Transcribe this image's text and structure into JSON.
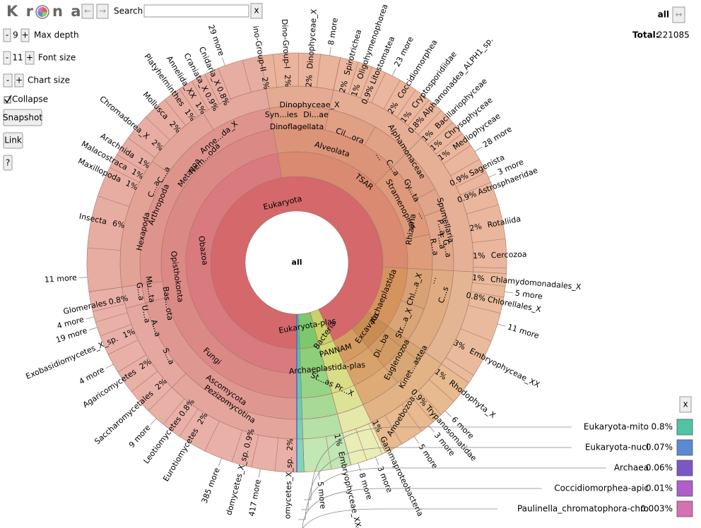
{
  "toolbar": {
    "logo_left": "K r",
    "logo_right": "n a",
    "back": "←",
    "forward": "→",
    "search_label": "Search:",
    "search_clear": "x",
    "max_depth": {
      "minus": "-",
      "value": "9",
      "plus": "+",
      "label": "Max depth"
    },
    "font_size": {
      "minus": "-",
      "value": "11",
      "plus": "+",
      "label": "Font size"
    },
    "chart_size": {
      "minus": "-",
      "plus": "+",
      "label": "Chart size"
    },
    "collapse": "Collapse",
    "snapshot": "Snapshot",
    "link": "Link",
    "help": "?"
  },
  "header": {
    "node": "all",
    "expand": "↔",
    "total_label": "Total:",
    "total": 221085
  },
  "chart": {
    "center": "all",
    "labels": [
      "Eukaryota",
      "Obazoa",
      "Opisthokonta",
      "Fungi",
      "Ascomycota",
      "Pezizomycotina",
      "Metazoa",
      "Arthropoda",
      "Hexapoda",
      "Nem...oda",
      "Anne...da_X",
      "C...a",
      "C...a",
      "TSAR",
      "Alveolata",
      "Dinoflagellata",
      "Syn...ies",
      "Di...ae",
      "Dinophyceae_X",
      "Cil...ora",
      "C...a",
      "Alphamonaceae",
      "Stramenopiles",
      "Gy...ta",
      "Spumellaria",
      "P...a",
      "F...a",
      "G...a",
      "R...a",
      "Rhizaria",
      "Chl...a_X",
      "Str...a_X",
      "Di...ba",
      "Euglenozoa",
      "Kinet...astea",
      "Amoebozoa",
      "Archaeplastida",
      "Excavata",
      "Eukaryota-plas",
      "Bacteria",
      "PANNAM",
      "Archaeplastida-plas",
      "St...as Pr...X",
      "Mu...ta",
      "G...a",
      "Bas...ota",
      "U...a",
      "A...a",
      "S...a",
      "...",
      "...",
      "...",
      "C...s"
    ],
    "outer": [
      {
        "name": "Insecta",
        "share": "6%"
      },
      {
        "name": "Maxillopoda",
        "share": "1%"
      },
      {
        "name": "Malacostraca",
        "share": "1%"
      },
      {
        "name": "Arachnida",
        "share": "1%"
      },
      {
        "name": "Chromadorea_X",
        "share": "2%"
      },
      {
        "name": "Mollusca",
        "share": "2%"
      },
      {
        "name": "Platyhelminthes",
        "share": "1%"
      },
      {
        "name": "Annelida_XX",
        "share": "1%"
      },
      {
        "name": "Craniata_X",
        "share": "0.9%"
      },
      {
        "name": "Cnidaria_X",
        "share": "0.8%"
      },
      {
        "name": "29 more"
      },
      {
        "name": "ino-Group-II",
        "share": "2%"
      },
      {
        "name": "Dino-Group-I",
        "share": "2%"
      },
      {
        "name": "Dinophyceae_X",
        "share": "2%"
      },
      {
        "name": "8 more"
      },
      {
        "name": "Spirotrichea",
        "share": "2%"
      },
      {
        "name": "Oligohymenophorea",
        "share": "1%"
      },
      {
        "name": "Litostomatea",
        "share": "0.9%"
      },
      {
        "name": "23 more"
      },
      {
        "name": "Coccidiomorphea",
        "share": "2%"
      },
      {
        "name": "Cryptosporidiidae",
        "share": "1%"
      },
      {
        "name": "Alphamonadea_ALPH1_sp.",
        "share": "0.8%"
      },
      {
        "name": "Bacillariophyceae",
        "share": "1%"
      },
      {
        "name": "Chrysophyceae",
        "share": "1%"
      },
      {
        "name": "Mediophyceae",
        "share": "1%"
      },
      {
        "name": "28 more"
      },
      {
        "name": "Sagenista",
        "share": "0.9%"
      },
      {
        "name": "3 more"
      },
      {
        "name": "Astrosphaeridae",
        "share": "0.9%"
      },
      {
        "name": "Rotaliida",
        "share": "2%"
      },
      {
        "name": "Cercozoa",
        "share": "1%"
      },
      {
        "name": "Chlamydomonadales_X",
        "share": "1%"
      },
      {
        "name": "5 more"
      },
      {
        "name": "Chlorellales_X",
        "share": "0.8%"
      },
      {
        "name": "11 more"
      },
      {
        "name": "Embryophyceae_XX",
        "share": "3%"
      },
      {
        "name": "Rhodophyta_X",
        "share": "1%"
      },
      {
        "name": "6 more"
      },
      {
        "name": "Trypanosomatidae",
        "share": "0.9%"
      },
      {
        "name": "3 more"
      },
      {
        "name": "5 more"
      },
      {
        "name": "Gammaproteobacteria",
        "share": "1%"
      },
      {
        "name": "3 more"
      },
      {
        "name": "8 more"
      },
      {
        "name": "Embryophyceae_XX-pla",
        "share": "1%"
      },
      {
        "name": "5 more"
      },
      {
        "name": "omycetes_X_sp.",
        "share": "2%"
      },
      {
        "name": "417 more"
      },
      {
        "name": "domycetes_X_sp.",
        "share": "0.9%"
      },
      {
        "name": "385 more"
      },
      {
        "name": "Eurotiomycetes",
        "share": "2%"
      },
      {
        "name": "Leotiomycetes",
        "share": "0.8%"
      },
      {
        "name": "9 more"
      },
      {
        "name": "Saccharomycetales",
        "share": "2%"
      },
      {
        "name": "Agaricomycetes",
        "share": "2%"
      },
      {
        "name": "4 more"
      },
      {
        "name": "Exobasidiomycetes_X_sp.",
        "share": "1%"
      },
      {
        "name": "19 more"
      },
      {
        "name": "4 more"
      },
      {
        "name": "Glomerales",
        "share": "0.8%"
      },
      {
        "name": "11 more"
      }
    ]
  },
  "legend": {
    "close": "x",
    "items": [
      {
        "name": "Eukaryota-mito",
        "share": "0.8%",
        "color": "#4fc5a5"
      },
      {
        "name": "Eukaryota-nucl",
        "share": "0.07%",
        "color": "#5a8bd2"
      },
      {
        "name": "Archaea",
        "share": "0.06%",
        "color": "#7a56c6"
      },
      {
        "name": "Coccidiomorphea-apic",
        "share": "0.01%",
        "color": "#b35ccb"
      },
      {
        "name": "Paulinella_chromatophora-chro",
        "share": "0.003%",
        "color": "#d570b2"
      }
    ]
  }
}
